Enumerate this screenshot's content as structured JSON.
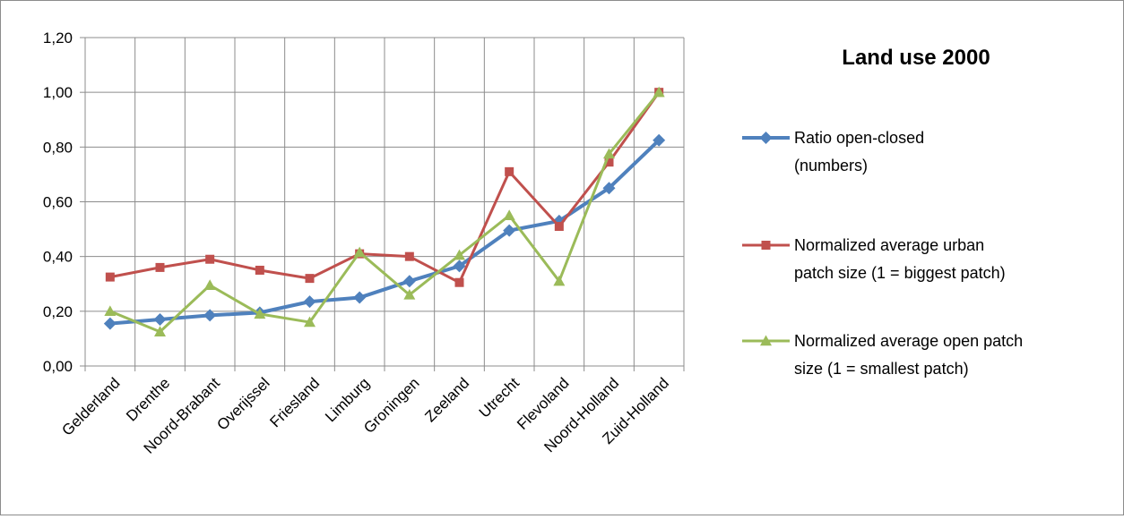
{
  "chart_data": {
    "type": "line",
    "title": "Land use 2000",
    "categories": [
      "Gelderland",
      "Drenthe",
      "Noord-Brabant",
      "Overijssel",
      "Friesland",
      "Limburg",
      "Groningen",
      "Zeeland",
      "Utrecht",
      "Flevoland",
      "Noord-Holland",
      "Zuid-Holland"
    ],
    "ylim": [
      0,
      1.2
    ],
    "yticks": [
      "0,00",
      "0,20",
      "0,40",
      "0,60",
      "0,80",
      "1,00",
      "1,20"
    ],
    "grid": true,
    "legend_position": "right",
    "series": [
      {
        "name_lines": [
          "Ratio open-closed",
          "(numbers)"
        ],
        "color": "#4f81bd",
        "marker": "diamond",
        "values": [
          0.155,
          0.17,
          0.185,
          0.195,
          0.235,
          0.25,
          0.31,
          0.365,
          0.495,
          0.53,
          0.65,
          0.825
        ]
      },
      {
        "name_lines": [
          "Normalized average urban",
          "patch size  (1 = biggest patch)"
        ],
        "color": "#c0504d",
        "marker": "square",
        "values": [
          0.325,
          0.36,
          0.39,
          0.35,
          0.32,
          0.41,
          0.4,
          0.305,
          0.71,
          0.51,
          0.745,
          1.0
        ]
      },
      {
        "name_lines": [
          "Normalized average open patch",
          "size (1 = smallest patch)"
        ],
        "color": "#9bbb59",
        "marker": "triangle",
        "values": [
          0.2,
          0.125,
          0.295,
          0.19,
          0.16,
          0.415,
          0.26,
          0.405,
          0.55,
          0.31,
          0.775,
          1.0
        ]
      }
    ]
  }
}
